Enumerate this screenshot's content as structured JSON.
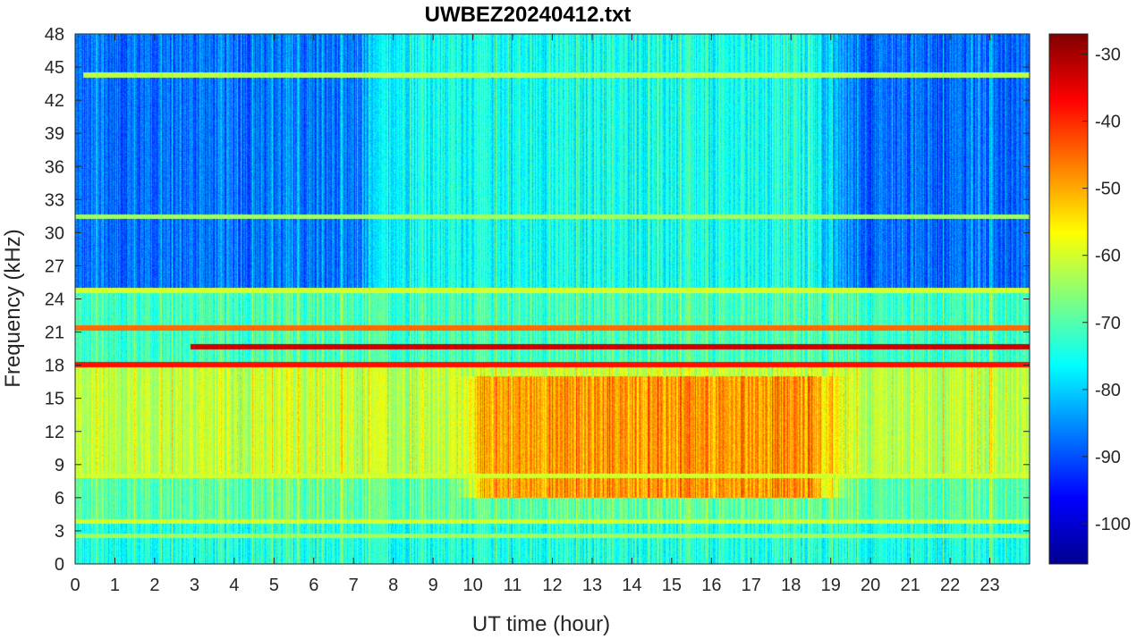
{
  "chart_data": {
    "type": "heatmap",
    "title": "UWBEZ20240412.txt",
    "xlabel": "UT time (hour)",
    "ylabel": "Frequency (kHz)",
    "xlim": [
      0,
      24
    ],
    "ylim": [
      0,
      48
    ],
    "x_ticks": [
      "0",
      "1",
      "2",
      "3",
      "4",
      "5",
      "6",
      "7",
      "8",
      "9",
      "10",
      "11",
      "12",
      "13",
      "14",
      "15",
      "16",
      "17",
      "18",
      "19",
      "20",
      "21",
      "22",
      "23"
    ],
    "y_ticks": [
      "0",
      "3",
      "6",
      "9",
      "12",
      "15",
      "18",
      "21",
      "24",
      "27",
      "30",
      "33",
      "36",
      "39",
      "42",
      "45",
      "48"
    ],
    "colorbar": {
      "min": -106,
      "max": -27,
      "ticks": [
        "-100",
        "-90",
        "-80",
        "-70",
        "-60",
        "-50",
        "-40",
        "-30"
      ],
      "colormap": "jet"
    },
    "background_level_by_band": [
      {
        "freq_range": [
          0,
          4
        ],
        "level": -75
      },
      {
        "freq_range": [
          4,
          8
        ],
        "level": -70
      },
      {
        "freq_range": [
          8,
          18
        ],
        "level": -62
      },
      {
        "freq_range": [
          18,
          25
        ],
        "level": -72
      },
      {
        "freq_range": [
          25,
          48
        ],
        "level": -88
      }
    ],
    "enhancements": [
      {
        "description": "daytime emission",
        "time_range": [
          9.5,
          19.5
        ],
        "freq_range": [
          6,
          17
        ],
        "level": -50
      },
      {
        "description": "daytime high-band rise",
        "time_range": [
          7,
          19.5
        ],
        "freq_range": [
          25,
          48
        ],
        "level": -76
      }
    ],
    "lines": [
      {
        "freq": 19.7,
        "time_range": [
          2.9,
          24
        ],
        "level": -33
      },
      {
        "freq": 18.1,
        "time_range": [
          0,
          24
        ],
        "level": -38
      },
      {
        "freq": 21.4,
        "time_range": [
          0,
          24
        ],
        "level": -45
      },
      {
        "freq": 24.8,
        "time_range": [
          0,
          24
        ],
        "level": -60
      },
      {
        "freq": 44.3,
        "time_range": [
          0.2,
          24
        ],
        "level": -62
      },
      {
        "freq": 31.5,
        "time_range": [
          0,
          24
        ],
        "level": -64
      },
      {
        "freq": 3.9,
        "time_range": [
          0,
          24
        ],
        "level": -60
      },
      {
        "freq": 2.6,
        "time_range": [
          0,
          24
        ],
        "level": -64
      },
      {
        "freq": 8.0,
        "time_range": [
          0,
          24
        ],
        "level": -60
      }
    ]
  }
}
